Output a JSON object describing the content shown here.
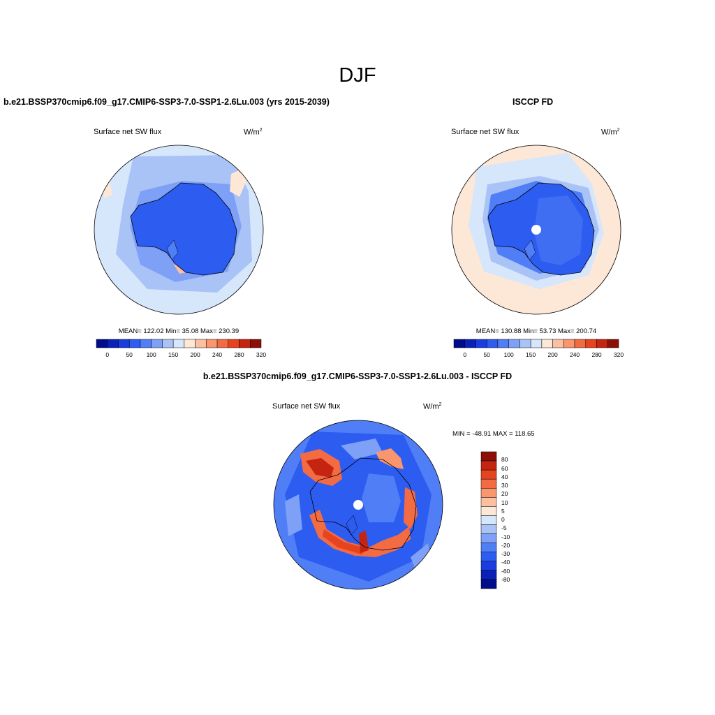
{
  "figure_title": "DJF",
  "colors": {
    "levels_abs": [
      "#000d8a",
      "#0a21b7",
      "#1a3de0",
      "#2c5cf0",
      "#507ef6",
      "#7ea0f7",
      "#a9c3f7",
      "#d6e6fb",
      "#fde7d6",
      "#fcc0a1",
      "#f9966e",
      "#f36b43",
      "#e6441f",
      "#c52510",
      "#8c0f08"
    ],
    "levels_diff": [
      "#000d8a",
      "#0a21b7",
      "#1a3de0",
      "#2c5cf0",
      "#507ef6",
      "#7ea0f7",
      "#a9c3f7",
      "#d6e6fb",
      "#fde7d6",
      "#fcc0a1",
      "#f9966e",
      "#f36b43",
      "#e6441f",
      "#c52510",
      "#8c0f08"
    ]
  },
  "panels": {
    "model": {
      "title": "b.e21.BSSP370cmip6.f09_g17.CMIP6-SSP3-7.0-SSP1-2.6Lu.003 (yrs 2015-2039)",
      "variable": "Surface net SW flux",
      "units_base": "W/m",
      "units_exp": "2",
      "stats": "MEAN= 122.02  Min=  35.08  Max= 230.39",
      "colorbar_ticks": [
        "0",
        "50",
        "100",
        "150",
        "200",
        "240",
        "280",
        "320"
      ]
    },
    "obs": {
      "title": "ISCCP FD",
      "variable": "Surface net SW flux",
      "units_base": "W/m",
      "units_exp": "2",
      "stats": "MEAN= 130.88  Min=  53.73  Max= 200.74",
      "colorbar_ticks": [
        "0",
        "50",
        "100",
        "150",
        "200",
        "240",
        "280",
        "320"
      ]
    },
    "diff": {
      "title": "b.e21.BSSP370cmip6.f09_g17.CMIP6-SSP3-7.0-SSP1-2.6Lu.003 - ISCCP FD",
      "variable": "Surface net SW flux",
      "units_base": "W/m",
      "units_exp": "2",
      "stats": "MIN = -48.91 MAX = 118.65",
      "colorbar_ticks": [
        "80",
        "60",
        "40",
        "30",
        "20",
        "10",
        "5",
        "0",
        "-5",
        "-10",
        "-20",
        "-30",
        "-40",
        "-60",
        "-80"
      ]
    }
  }
}
